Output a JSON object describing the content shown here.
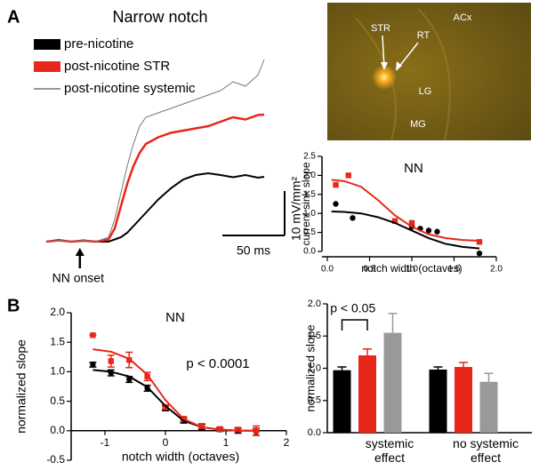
{
  "panels": {
    "a": "A",
    "b": "B"
  },
  "image": {
    "labels": [
      "STR",
      "RT",
      "ACx",
      "LG",
      "MG"
    ]
  },
  "chart_data": [
    {
      "type": "line",
      "title": "Narrow notch",
      "x": [
        0,
        10,
        20,
        30,
        40,
        50,
        55,
        60,
        65,
        70,
        75,
        80,
        90,
        100,
        110,
        120,
        130,
        140,
        150,
        160,
        170,
        175
      ],
      "xlim": [
        0,
        175
      ],
      "ylim": [
        -2,
        42
      ],
      "series": [
        {
          "name": "pre-nicotine",
          "color": "#000000",
          "values": [
            0,
            0.4,
            0,
            0.3,
            0,
            0,
            0.5,
            1,
            2,
            3.5,
            5,
            6.5,
            9.5,
            12,
            14,
            15,
            15.4,
            15,
            14.5,
            15,
            14.4,
            14.6
          ]
        },
        {
          "name": "post-nicotine STR",
          "color": "#e8271b",
          "values": [
            0,
            0.3,
            0,
            0.2,
            0,
            0.5,
            3,
            8,
            13,
            17,
            20,
            22,
            23.5,
            24.5,
            25,
            25.5,
            26,
            27,
            28,
            27.5,
            28.5,
            28.6
          ]
        },
        {
          "name": "post-nicotine systemic",
          "color": "#777777",
          "values": [
            0,
            0.3,
            0,
            0.3,
            0,
            1,
            5,
            11,
            17,
            22,
            26,
            28,
            29,
            30,
            31,
            32,
            33,
            34,
            36,
            35,
            37.5,
            41
          ]
        }
      ],
      "scale_bars": {
        "y": {
          "value": 10,
          "label": "10 mV/mm²"
        },
        "x": {
          "value": 50,
          "label": "50 ms"
        }
      },
      "annotation": {
        "text": "NN onset",
        "x": 27
      }
    },
    {
      "type": "scatter",
      "title": "NN",
      "xlabel": "notch width (octaves)",
      "ylabel": "current sink slope",
      "xlim": [
        0,
        2
      ],
      "ylim": [
        0,
        2.5
      ],
      "xticks": [
        {
          "value": 0,
          "label": "0.0"
        },
        0.5,
        {
          "value": 1,
          "label": "1.0"
        },
        1.5,
        {
          "value": 2,
          "label": "2.0"
        }
      ],
      "yticks": [
        {
          "value": 0,
          "label": "0.0"
        },
        0.5,
        {
          "value": 1,
          "label": "1.0"
        },
        1.5,
        {
          "value": 2,
          "label": "2.0"
        },
        2.5
      ],
      "series": [
        {
          "color": "#000000",
          "style": "points",
          "x": [
            0.1,
            0.3,
            1.0,
            1.1,
            1.2,
            1.3,
            1.8
          ],
          "values": [
            1.25,
            0.88,
            0.65,
            0.6,
            0.55,
            0.52,
            -0.05
          ]
        },
        {
          "color": "#e8271b",
          "style": "points",
          "x": [
            0.1,
            0.25,
            0.8,
            1.0,
            1.8
          ],
          "values": [
            1.75,
            2.0,
            0.8,
            0.75,
            0.25
          ]
        },
        {
          "color": "#000000",
          "style": "line",
          "x": [
            0.05,
            0.2,
            0.4,
            0.6,
            0.8,
            1.0,
            1.2,
            1.4,
            1.6,
            1.8
          ],
          "values": [
            1.05,
            1.04,
            1.0,
            0.9,
            0.75,
            0.55,
            0.35,
            0.2,
            0.12,
            0.08
          ]
        },
        {
          "color": "#e8271b",
          "style": "line",
          "x": [
            0.05,
            0.2,
            0.4,
            0.6,
            0.8,
            1.0,
            1.2,
            1.4,
            1.6,
            1.8
          ],
          "values": [
            1.88,
            1.85,
            1.7,
            1.35,
            0.95,
            0.65,
            0.45,
            0.35,
            0.3,
            0.28
          ]
        }
      ]
    },
    {
      "type": "scatter",
      "title": "NN",
      "xlabel": "notch width (octaves)",
      "ylabel": "normalized slope",
      "annotation": "p < 0.0001",
      "xlim": [
        -1.5,
        2
      ],
      "ylim": [
        -0.5,
        2
      ],
      "xticks": [
        -1,
        0,
        1,
        2
      ],
      "yticks": [
        -0.5,
        {
          "value": 0,
          "label": "0.0"
        },
        0.5,
        {
          "value": 1,
          "label": "1.0"
        },
        1.5,
        {
          "value": 2,
          "label": "2.0"
        }
      ],
      "series": [
        {
          "color": "#000000",
          "style": "points",
          "x": [
            -1.2,
            -0.9,
            -0.6,
            -0.3,
            0,
            0.3,
            0.6,
            0.9,
            1.2,
            1.5
          ],
          "values": [
            1.12,
            0.98,
            0.87,
            0.72,
            0.38,
            0.17,
            0.06,
            0.02,
            0.0,
            -0.02
          ],
          "errors": [
            0.04,
            0.05,
            0.05,
            0.05,
            0.04,
            0.04,
            0.04,
            0.03,
            0.04,
            0.06
          ]
        },
        {
          "color": "#e8271b",
          "style": "points",
          "x": [
            -1.2,
            -0.9,
            -0.6,
            -0.3,
            0,
            0.3,
            0.6,
            0.9,
            1.2,
            1.5
          ],
          "values": [
            1.62,
            1.18,
            1.2,
            0.92,
            0.4,
            0.2,
            0.08,
            0.03,
            0.02,
            0.0
          ],
          "errors": [
            0.0,
            0.1,
            0.13,
            0.07,
            0.04,
            0.04,
            0.04,
            0.03,
            0.03,
            0.08
          ]
        },
        {
          "color": "#000000",
          "style": "line",
          "x": [
            -1.2,
            -0.9,
            -0.6,
            -0.3,
            0,
            0.3,
            0.6,
            0.9,
            1.2,
            1.5
          ],
          "values": [
            1.03,
            1.0,
            0.92,
            0.74,
            0.42,
            0.17,
            0.06,
            0.02,
            0.0,
            0.0
          ]
        },
        {
          "color": "#e8271b",
          "style": "line",
          "x": [
            -1.2,
            -0.9,
            -0.6,
            -0.3,
            0,
            0.3,
            0.6,
            0.9,
            1.2,
            1.5
          ],
          "values": [
            1.38,
            1.34,
            1.22,
            0.95,
            0.52,
            0.2,
            0.06,
            0.02,
            0.0,
            0.0
          ]
        }
      ]
    },
    {
      "type": "bar",
      "ylabel": "normalized slope",
      "annotation": "p < 0.05",
      "categories": [
        "systemic effect",
        "no systemic effect"
      ],
      "ylim": [
        0,
        2
      ],
      "yticks": [
        {
          "value": 0,
          "label": "0.0"
        },
        0.5,
        {
          "value": 1,
          "label": "1.0"
        },
        1.5,
        {
          "value": 2,
          "label": "2.0"
        }
      ],
      "series": [
        {
          "color": "#000000",
          "values": [
            0.97,
            0.98
          ],
          "errors": [
            0.05,
            0.04
          ]
        },
        {
          "color": "#e8271b",
          "values": [
            1.2,
            1.02
          ],
          "errors": [
            0.1,
            0.07
          ]
        },
        {
          "color": "#999999",
          "values": [
            1.55,
            0.79
          ],
          "errors": [
            0.3,
            0.13
          ]
        }
      ]
    }
  ]
}
